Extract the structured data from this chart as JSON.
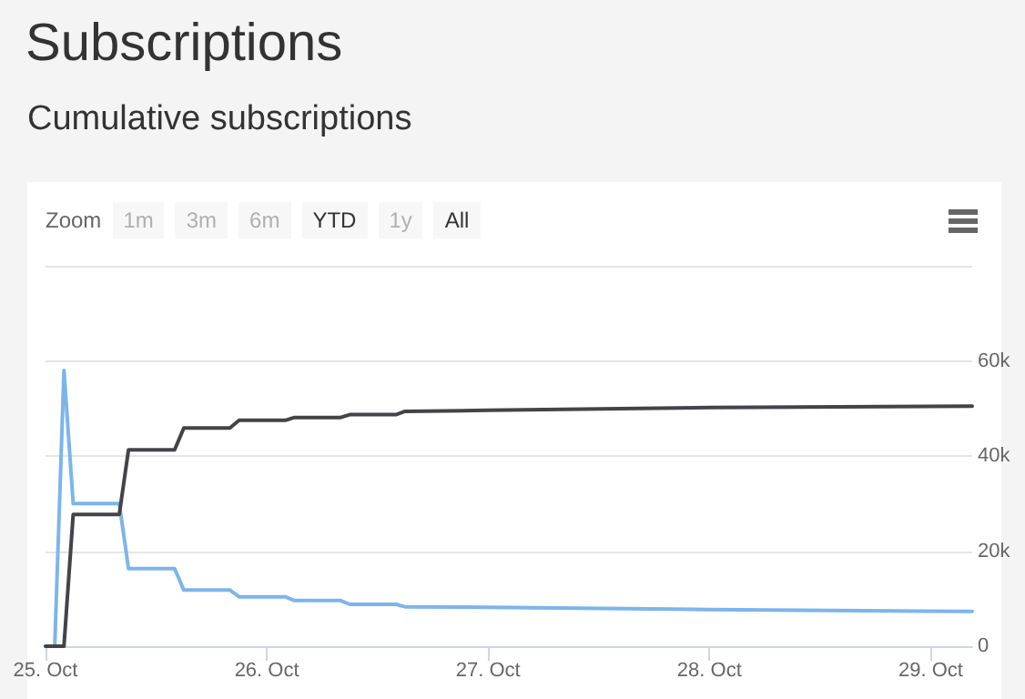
{
  "chart_data": {
    "type": "line",
    "title": "Subscriptions",
    "subtitle": "Cumulative subscriptions",
    "annotations": [
      "Zoom",
      "1m",
      "3m",
      "6m",
      "YTD",
      "1y",
      "All"
    ],
    "series": [
      {
        "color": "#7cb5ec",
        "x": [
          "--10-25T00:00",
          "--10-25T01:00",
          "--10-25T02:00",
          "--10-25T03:00",
          "--10-25T08:00",
          "--10-25T09:00",
          "--10-25T14:00",
          "--10-25T15:00",
          "--10-25T20:00",
          "--10-25T21:00",
          "--10-26T02:00",
          "--10-26T03:00",
          "--10-26T08:00",
          "--10-26T09:00",
          "--10-26T14:00",
          "--10-26T15:00",
          "--10-27T00:00",
          "--10-28T00:00",
          "--10-29T04:30"
        ],
        "values": [
          0,
          0,
          58000,
          30000,
          30000,
          16300,
          16300,
          11800,
          11800,
          10400,
          10400,
          9600,
          9600,
          8800,
          8800,
          8300,
          8200,
          7700,
          7300
        ]
      },
      {
        "color": "#434348",
        "x": [
          "--10-25T00:00",
          "--10-25T01:00",
          "--10-25T02:00",
          "--10-25T03:00",
          "--10-25T08:00",
          "--10-25T09:00",
          "--10-25T14:00",
          "--10-25T15:00",
          "--10-25T20:00",
          "--10-25T21:00",
          "--10-26T02:00",
          "--10-26T03:00",
          "--10-26T08:00",
          "--10-26T09:00",
          "--10-26T14:00",
          "--10-26T15:00",
          "--10-27T00:00",
          "--10-28T00:00",
          "--10-29T04:30"
        ],
        "values": [
          0,
          0,
          0,
          27700,
          27700,
          41300,
          41300,
          45900,
          45900,
          47500,
          47500,
          48100,
          48100,
          48700,
          48700,
          49400,
          49600,
          50200,
          50500
        ]
      }
    ],
    "xlim": [
      "--10-25T00:00",
      "--10-29T04:30"
    ],
    "xticks": [
      {
        "value": "--10-25T00:00",
        "label": "25. Oct"
      },
      {
        "value": "--10-26T00:00",
        "label": "26. Oct"
      },
      {
        "value": "--10-27T00:00",
        "label": "27. Oct"
      },
      {
        "value": "--10-28T00:00",
        "label": "28. Oct"
      },
      {
        "value": "--10-29T00:00",
        "label": "29. Oct"
      }
    ],
    "ylim": [
      0,
      80000
    ],
    "yticks": [
      {
        "value": 0,
        "label": "0"
      },
      {
        "value": 20000,
        "label": "20k"
      },
      {
        "value": 40000,
        "label": "40k"
      },
      {
        "value": 60000,
        "label": "60k"
      },
      {
        "value": 80000,
        "label": null
      }
    ],
    "grid": "y",
    "marker": "none",
    "line_style": "solid"
  }
}
